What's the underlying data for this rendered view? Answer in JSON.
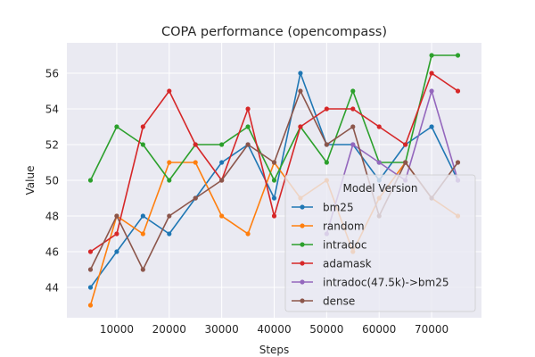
{
  "chart_data": {
    "type": "line",
    "title": "COPA performance (opencompass)",
    "xlabel": "Steps",
    "ylabel": "Value",
    "xlim": [
      500,
      79500
    ],
    "ylim": [
      42.3,
      57.7
    ],
    "xticks": [
      10000,
      20000,
      30000,
      40000,
      50000,
      60000,
      70000
    ],
    "xtick_labels": [
      "10000",
      "20000",
      "30000",
      "40000",
      "50000",
      "60000",
      "70000"
    ],
    "yticks": [
      44,
      46,
      48,
      50,
      52,
      54,
      56
    ],
    "ytick_labels": [
      "44",
      "46",
      "48",
      "50",
      "52",
      "54",
      "56"
    ],
    "grid": true,
    "legend_title": "Model Version",
    "legend_position": "lower-right",
    "x": [
      5000,
      10000,
      15000,
      20000,
      25000,
      30000,
      35000,
      40000,
      45000,
      50000,
      55000,
      60000,
      65000,
      70000,
      75000
    ],
    "series": [
      {
        "name": "bm25",
        "color": "#1f77b4",
        "values": [
          44,
          46,
          48,
          47,
          49,
          51,
          52,
          49,
          56,
          52,
          52,
          50,
          52,
          53,
          50
        ]
      },
      {
        "name": "random",
        "color": "#ff7f0e",
        "values": [
          43,
          48,
          47,
          51,
          51,
          48,
          47,
          51,
          49,
          50,
          46,
          49,
          51,
          49,
          48
        ]
      },
      {
        "name": "intradoc",
        "color": "#2ca02c",
        "values": [
          50,
          53,
          52,
          50,
          52,
          52,
          53,
          50,
          53,
          51,
          55,
          51,
          51,
          57,
          57
        ]
      },
      {
        "name": "adamask",
        "color": "#d62728",
        "values": [
          46,
          47,
          53,
          55,
          52,
          50,
          54,
          48,
          53,
          54,
          54,
          53,
          52,
          56,
          55
        ]
      },
      {
        "name": "intradoc(47.5k)->bm25",
        "color": "#9467bd",
        "values": [
          null,
          null,
          null,
          null,
          null,
          null,
          null,
          null,
          null,
          47,
          52,
          51,
          50,
          55,
          50
        ]
      },
      {
        "name": "dense",
        "color": "#8c564b",
        "values": [
          45,
          48,
          45,
          48,
          49,
          50,
          52,
          51,
          55,
          52,
          53,
          48,
          51,
          49,
          51
        ]
      }
    ]
  }
}
